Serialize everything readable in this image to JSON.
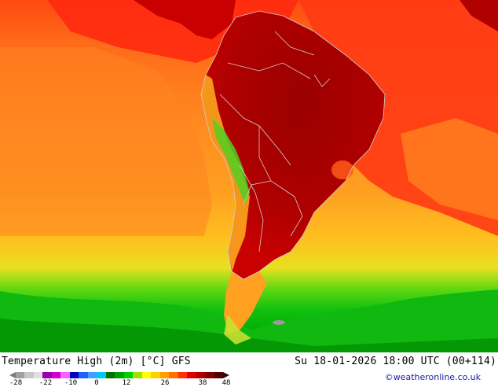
{
  "map": {
    "title": "Temperature High (2m) [°C] GFS",
    "datetime": "Su 18-01-2026 18:00 UTC (00+114)",
    "credit": "©weatheronline.co.uk",
    "region": "South America",
    "colors": {
      "ocean_cool": "#f5a21a",
      "ocean_mid": "#ff7a1a",
      "ocean_warm": "#ff3a1a",
      "land_hot": "#b80000",
      "land_very_hot": "#900000",
      "cold_green": "#00c000",
      "borders": "#c8c8c8"
    }
  },
  "legend": {
    "ticks": [
      "-28",
      "-22",
      "-10",
      "0",
      "12",
      "26",
      "38",
      "48"
    ],
    "colors": [
      "#a0a0a0",
      "#c8c8c8",
      "#e0e0e0",
      "#9a00b0",
      "#d000d0",
      "#ff60ff",
      "#0000c0",
      "#2060ff",
      "#40a0ff",
      "#00c8ff",
      "#007000",
      "#00a000",
      "#00d000",
      "#a0e000",
      "#ffff00",
      "#ffd000",
      "#ffa000",
      "#ff7000",
      "#ff3000",
      "#e00000",
      "#b00000",
      "#800000",
      "#500000"
    ]
  }
}
